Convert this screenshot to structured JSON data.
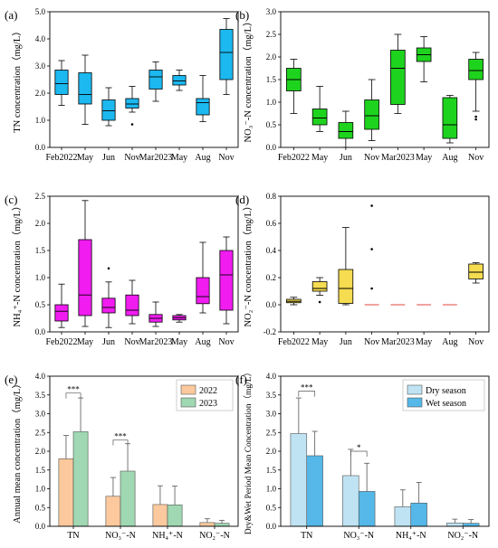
{
  "chart_data": [
    {
      "type": "box",
      "panel_label": "(a)",
      "ylabel": "TN concentration（mg/L）",
      "ylim": [
        0,
        5
      ],
      "yticks": [
        "0.0",
        "1.0",
        "2.0",
        "3.0",
        "4.0",
        "5.0"
      ],
      "categories": [
        "Feb2022",
        "May",
        "Jun",
        "Nov",
        "Mar2023",
        "May",
        "Aug",
        "Nov"
      ],
      "color": "#1cb8f0",
      "boxes": [
        {
          "min": 1.55,
          "q1": 1.95,
          "median": 2.35,
          "q3": 2.85,
          "max": 3.2,
          "outliers": []
        },
        {
          "min": 0.85,
          "q1": 1.6,
          "median": 1.95,
          "q3": 2.75,
          "max": 3.4,
          "outliers": []
        },
        {
          "min": 0.8,
          "q1": 1.0,
          "median": 1.35,
          "q3": 1.75,
          "max": 2.2,
          "outliers": []
        },
        {
          "min": 1.3,
          "q1": 1.45,
          "median": 1.6,
          "q3": 1.8,
          "max": 2.25,
          "outliers": [
            0.85
          ]
        },
        {
          "min": 1.7,
          "q1": 2.15,
          "median": 2.6,
          "q3": 2.85,
          "max": 3.15,
          "outliers": []
        },
        {
          "min": 2.1,
          "q1": 2.3,
          "median": 2.45,
          "q3": 2.65,
          "max": 2.85,
          "outliers": []
        },
        {
          "min": 0.95,
          "q1": 1.2,
          "median": 1.65,
          "q3": 1.8,
          "max": 2.65,
          "outliers": []
        },
        {
          "min": 1.95,
          "q1": 2.5,
          "median": 3.5,
          "q3": 4.35,
          "max": 4.75,
          "outliers": []
        }
      ]
    },
    {
      "type": "box",
      "panel_label": "(b)",
      "ylabel": "NO₃⁻-N concentration（mg/L）",
      "ylim": [
        0,
        3
      ],
      "yticks": [
        "0.0",
        "0.5",
        "1.0",
        "1.5",
        "2.0",
        "2.5",
        "3.0"
      ],
      "categories": [
        "Feb2022",
        "May",
        "Jun",
        "Nov",
        "Mar2023",
        "May",
        "Aug",
        "Nov"
      ],
      "color": "#1ed31e",
      "boxes": [
        {
          "min": 0.75,
          "q1": 1.25,
          "median": 1.5,
          "q3": 1.75,
          "max": 1.95,
          "outliers": []
        },
        {
          "min": 0.35,
          "q1": 0.5,
          "median": 0.65,
          "q3": 0.85,
          "max": 1.35,
          "outliers": []
        },
        {
          "min": 0.0,
          "q1": 0.2,
          "median": 0.35,
          "q3": 0.55,
          "max": 0.8,
          "outliers": []
        },
        {
          "min": 0.15,
          "q1": 0.4,
          "median": 0.7,
          "q3": 1.05,
          "max": 1.5,
          "outliers": []
        },
        {
          "min": 0.75,
          "q1": 0.95,
          "median": 1.75,
          "q3": 2.15,
          "max": 2.5,
          "outliers": []
        },
        {
          "min": 1.45,
          "q1": 1.9,
          "median": 2.05,
          "q3": 2.2,
          "max": 2.45,
          "outliers": []
        },
        {
          "min": 0.1,
          "q1": 0.2,
          "median": 0.5,
          "q3": 1.1,
          "max": 1.15,
          "outliers": []
        },
        {
          "min": 0.8,
          "q1": 1.5,
          "median": 1.7,
          "q3": 1.95,
          "max": 2.1,
          "outliers": [
            0.62,
            0.68
          ]
        }
      ]
    },
    {
      "type": "box",
      "panel_label": "(c)",
      "ylabel": "NH₄⁺-N concentration（mg/L）",
      "ylim": [
        0,
        2.5
      ],
      "yticks": [
        "0.0",
        "0.5",
        "1.0",
        "1.5",
        "2.0",
        "2.5"
      ],
      "categories": [
        "Feb2022",
        "May",
        "Jun",
        "Nov",
        "Mar2023",
        "May",
        "Aug",
        "Nov"
      ],
      "color": "#f01cf0",
      "boxes": [
        {
          "min": 0.08,
          "q1": 0.2,
          "median": 0.38,
          "q3": 0.5,
          "max": 0.88,
          "outliers": []
        },
        {
          "min": 0.1,
          "q1": 0.3,
          "median": 0.68,
          "q3": 1.7,
          "max": 2.42,
          "outliers": []
        },
        {
          "min": 0.08,
          "q1": 0.35,
          "median": 0.45,
          "q3": 0.62,
          "max": 0.92,
          "outliers": [
            1.17
          ]
        },
        {
          "min": 0.15,
          "q1": 0.3,
          "median": 0.4,
          "q3": 0.68,
          "max": 0.95,
          "outliers": []
        },
        {
          "min": 0.1,
          "q1": 0.18,
          "median": 0.25,
          "q3": 0.32,
          "max": 0.55,
          "outliers": []
        },
        {
          "min": 0.18,
          "q1": 0.22,
          "median": 0.26,
          "q3": 0.3,
          "max": 0.32,
          "outliers": []
        },
        {
          "min": 0.35,
          "q1": 0.52,
          "median": 0.65,
          "q3": 1.0,
          "max": 1.65,
          "outliers": []
        },
        {
          "min": 0.15,
          "q1": 0.4,
          "median": 1.05,
          "q3": 1.5,
          "max": 1.75,
          "outliers": []
        }
      ]
    },
    {
      "type": "box",
      "panel_label": "(d)",
      "ylabel": "NO₂⁻-N concentration（mg/L）",
      "ylim": [
        -0.2,
        0.8
      ],
      "yticks": [
        "-0.2",
        "0.0",
        "0.2",
        "0.4",
        "0.6",
        "0.8"
      ],
      "categories": [
        "Feb2022",
        "May",
        "Jun",
        "Nov",
        "Mar2023",
        "May",
        "Aug",
        "Nov"
      ],
      "color": "#f5dc50",
      "boxes": [
        {
          "min": 0.0,
          "q1": 0.015,
          "median": 0.025,
          "q3": 0.04,
          "max": 0.055,
          "outliers": []
        },
        {
          "min": 0.07,
          "q1": 0.1,
          "median": 0.12,
          "q3": 0.17,
          "max": 0.2,
          "outliers": [
            0.02
          ]
        },
        {
          "min": 0.0,
          "q1": 0.01,
          "median": 0.12,
          "q3": 0.26,
          "max": 0.57,
          "outliers": []
        },
        {
          "min": 0.0,
          "q1": 0.0,
          "median": 0.0,
          "q3": 0.0,
          "max": 0.0,
          "outliers": [
            0.12,
            0.41,
            0.73
          ]
        },
        {
          "min": 0.0,
          "q1": 0.0,
          "median": 0.0,
          "q3": 0.0,
          "max": 0.0,
          "outliers": []
        },
        {
          "min": 0.0,
          "q1": 0.0,
          "median": 0.0,
          "q3": 0.0,
          "max": 0.0,
          "outliers": []
        },
        {
          "min": 0.0,
          "q1": 0.0,
          "median": 0.0,
          "q3": 0.0,
          "max": 0.0,
          "outliers": []
        },
        {
          "min": 0.16,
          "q1": 0.19,
          "median": 0.24,
          "q3": 0.3,
          "max": 0.31,
          "outliers": []
        }
      ]
    },
    {
      "type": "bar",
      "panel_label": "(e)",
      "ylabel": "Annual mean concentration（mg/L）",
      "ylim": [
        0,
        4
      ],
      "yticks": [
        "0.0",
        "0.5",
        "1.0",
        "1.5",
        "2.0",
        "2.5",
        "3.0",
        "3.5",
        "4.0"
      ],
      "categories": [
        "TN",
        "NO₃⁻-N",
        "NH₄⁺-N",
        "NO₂⁻-N"
      ],
      "series": [
        {
          "name": "2022",
          "color": "#fbc99d",
          "values": [
            1.8,
            0.8,
            0.58,
            0.1
          ],
          "errors": [
            0.62,
            0.5,
            0.5,
            0.1
          ]
        },
        {
          "name": "2023",
          "color": "#9fd8b2",
          "values": [
            2.52,
            1.47,
            0.57,
            0.08
          ],
          "errors": [
            0.9,
            0.73,
            0.5,
            0.08
          ]
        }
      ],
      "significance": [
        {
          "category_index": 0,
          "label": "***",
          "level": 3.55
        },
        {
          "category_index": 1,
          "label": "***",
          "level": 2.3
        }
      ]
    },
    {
      "type": "bar",
      "panel_label": "(f)",
      "ylabel": "Dry&Wet Period Mean Concentration（mg/L）",
      "ylim": [
        0,
        4
      ],
      "yticks": [
        "0.0",
        "0.5",
        "1.0",
        "1.5",
        "2.0",
        "2.5",
        "3.0",
        "3.5",
        "4.0"
      ],
      "categories": [
        "TN",
        "NO₃⁻-N",
        "NH₄⁺-N",
        "NO₂⁻-N"
      ],
      "series": [
        {
          "name": "Dry season",
          "color": "#bfe3f2",
          "values": [
            2.47,
            1.35,
            0.52,
            0.09
          ],
          "errors": [
            0.95,
            0.7,
            0.45,
            0.1
          ]
        },
        {
          "name": "Wet season",
          "color": "#55b8e8",
          "values": [
            1.88,
            0.93,
            0.62,
            0.08
          ],
          "errors": [
            0.65,
            0.75,
            0.55,
            0.1
          ]
        }
      ],
      "significance": [
        {
          "category_index": 0,
          "label": "***",
          "level": 3.6
        },
        {
          "category_index": 1,
          "label": "*",
          "level": 2.0
        }
      ]
    }
  ]
}
